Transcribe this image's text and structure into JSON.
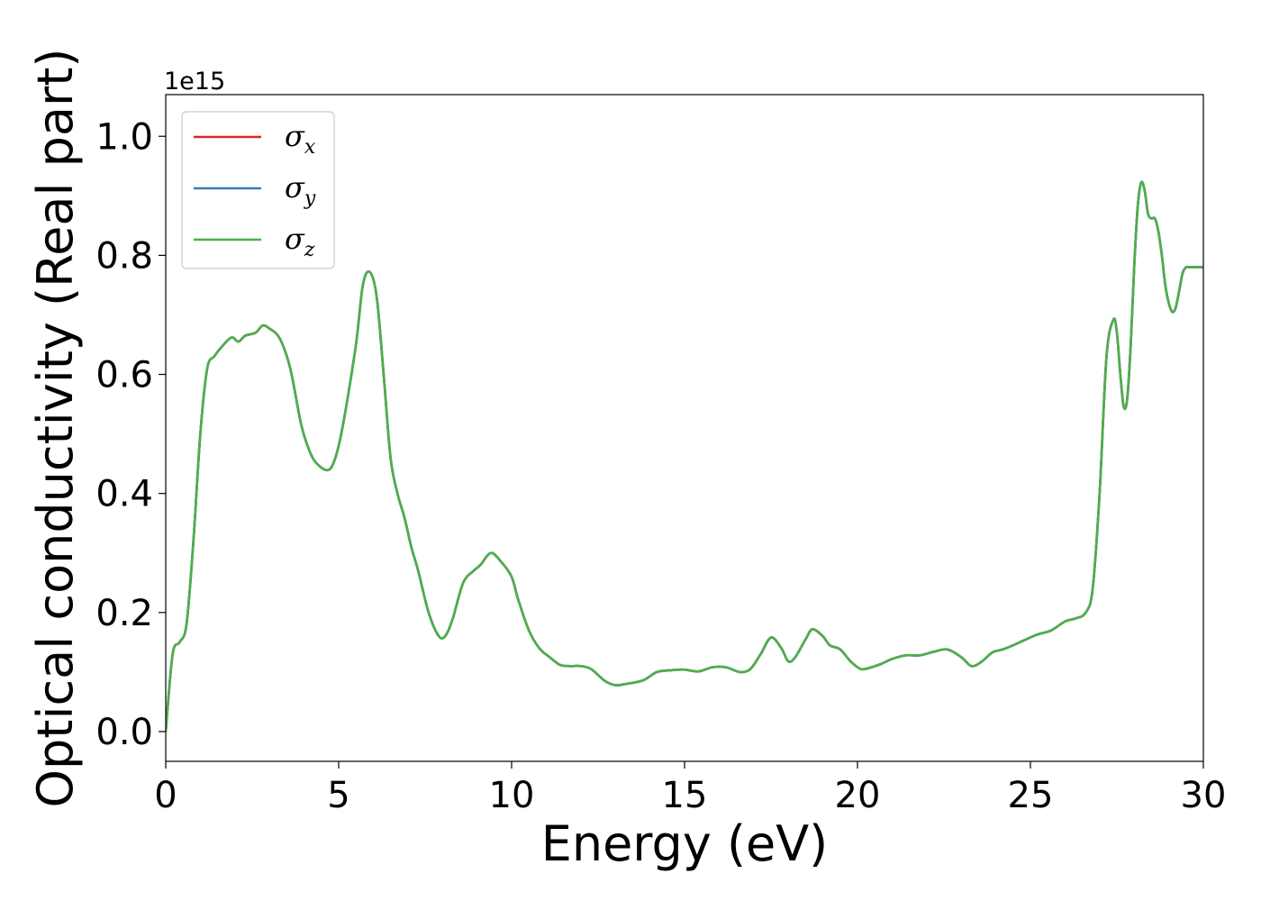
{
  "chart_data": {
    "type": "line",
    "xlabel": "Energy (eV)",
    "ylabel": "Optical conductivity (Real part)",
    "offset_text": "1e15",
    "xlim": [
      0,
      30
    ],
    "ylim": [
      -0.05,
      1.07
    ],
    "xticks": [
      0,
      5,
      10,
      15,
      20,
      25,
      30
    ],
    "xtick_labels": [
      "0",
      "5",
      "10",
      "15",
      "20",
      "25",
      "30"
    ],
    "yticks": [
      0.0,
      0.2,
      0.4,
      0.6,
      0.8,
      1.0
    ],
    "ytick_labels": [
      "0.0",
      "0.2",
      "0.4",
      "0.6",
      "0.8",
      "1.0"
    ],
    "grid": false,
    "legend_position": "upper-left",
    "legend": [
      {
        "symbol": "σ",
        "subscript": "x",
        "color": "#d62728"
      },
      {
        "symbol": "σ",
        "subscript": "y",
        "color": "#377eb8"
      },
      {
        "symbol": "σ",
        "subscript": "z",
        "color": "#4daf4a"
      }
    ],
    "x": [
      0,
      0.2,
      0.4,
      0.6,
      0.8,
      1.0,
      1.2,
      1.4,
      1.6,
      1.9,
      2.1,
      2.3,
      2.6,
      2.8,
      3.0,
      3.3,
      3.6,
      3.9,
      4.1,
      4.3,
      4.6,
      4.8,
      5.0,
      5.2,
      5.5,
      5.7,
      5.9,
      6.1,
      6.3,
      6.5,
      6.7,
      6.9,
      7.1,
      7.3,
      7.6,
      7.9,
      8.1,
      8.3,
      8.6,
      8.9,
      9.1,
      9.4,
      9.7,
      10.0,
      10.2,
      10.5,
      10.8,
      11.1,
      11.4,
      11.7,
      12.0,
      12.3,
      12.7,
      13.0,
      13.3,
      13.8,
      14.2,
      14.6,
      15.0,
      15.4,
      15.8,
      16.2,
      16.6,
      16.9,
      17.2,
      17.5,
      17.8,
      18.0,
      18.2,
      18.5,
      18.7,
      19.0,
      19.2,
      19.5,
      19.8,
      20.1,
      20.4,
      20.7,
      21.0,
      21.4,
      21.8,
      22.2,
      22.6,
      23.0,
      23.3,
      23.6,
      23.9,
      24.2,
      24.5,
      24.8,
      25.2,
      25.6,
      26.0,
      26.3,
      26.6,
      26.8,
      27.0,
      27.2,
      27.4,
      27.5,
      27.6,
      27.7,
      27.8,
      27.9,
      28.0,
      28.1,
      28.2,
      28.3,
      28.4,
      28.5,
      28.6,
      28.7,
      28.8,
      28.9,
      29.0,
      29.1,
      29.2,
      29.3,
      29.4,
      29.5,
      29.6,
      29.7,
      29.8,
      29.9,
      30.0
    ],
    "series": [
      {
        "color": "#d62728",
        "values": [
          0.0,
          0.13,
          0.15,
          0.18,
          0.32,
          0.5,
          0.61,
          0.63,
          0.645,
          0.662,
          0.655,
          0.665,
          0.67,
          0.682,
          0.677,
          0.66,
          0.61,
          0.52,
          0.48,
          0.455,
          0.44,
          0.445,
          0.48,
          0.54,
          0.65,
          0.75,
          0.772,
          0.73,
          0.6,
          0.46,
          0.4,
          0.36,
          0.31,
          0.27,
          0.2,
          0.16,
          0.162,
          0.19,
          0.25,
          0.27,
          0.28,
          0.3,
          0.285,
          0.26,
          0.22,
          0.17,
          0.14,
          0.125,
          0.112,
          0.11,
          0.11,
          0.105,
          0.085,
          0.078,
          0.08,
          0.086,
          0.1,
          0.103,
          0.104,
          0.101,
          0.108,
          0.108,
          0.1,
          0.105,
          0.13,
          0.158,
          0.14,
          0.118,
          0.125,
          0.155,
          0.172,
          0.16,
          0.145,
          0.138,
          0.118,
          0.105,
          0.108,
          0.114,
          0.122,
          0.128,
          0.128,
          0.134,
          0.138,
          0.125,
          0.11,
          0.118,
          0.133,
          0.138,
          0.145,
          0.153,
          0.163,
          0.17,
          0.185,
          0.19,
          0.2,
          0.24,
          0.4,
          0.63,
          0.692,
          0.67,
          0.6,
          0.545,
          0.56,
          0.65,
          0.78,
          0.88,
          0.922,
          0.91,
          0.87,
          0.862,
          0.862,
          0.84,
          0.8,
          0.75,
          0.72,
          0.705,
          0.712,
          0.74,
          0.77,
          0.78,
          0.78,
          0.78,
          0.78,
          0.78,
          0.78
        ]
      },
      {
        "color": "#377eb8",
        "values": [
          0.0,
          0.13,
          0.15,
          0.18,
          0.32,
          0.5,
          0.61,
          0.63,
          0.645,
          0.662,
          0.655,
          0.665,
          0.67,
          0.682,
          0.677,
          0.66,
          0.61,
          0.52,
          0.48,
          0.455,
          0.44,
          0.445,
          0.48,
          0.54,
          0.65,
          0.75,
          0.772,
          0.73,
          0.6,
          0.46,
          0.4,
          0.36,
          0.31,
          0.27,
          0.2,
          0.16,
          0.162,
          0.19,
          0.25,
          0.27,
          0.28,
          0.3,
          0.285,
          0.26,
          0.22,
          0.17,
          0.14,
          0.125,
          0.112,
          0.11,
          0.11,
          0.105,
          0.085,
          0.078,
          0.08,
          0.086,
          0.1,
          0.103,
          0.104,
          0.101,
          0.108,
          0.108,
          0.1,
          0.105,
          0.13,
          0.158,
          0.14,
          0.118,
          0.125,
          0.155,
          0.172,
          0.16,
          0.145,
          0.138,
          0.118,
          0.105,
          0.108,
          0.114,
          0.122,
          0.128,
          0.128,
          0.134,
          0.138,
          0.125,
          0.11,
          0.118,
          0.133,
          0.138,
          0.145,
          0.153,
          0.163,
          0.17,
          0.185,
          0.19,
          0.2,
          0.24,
          0.4,
          0.63,
          0.692,
          0.67,
          0.6,
          0.545,
          0.56,
          0.65,
          0.78,
          0.88,
          0.922,
          0.91,
          0.87,
          0.862,
          0.862,
          0.84,
          0.8,
          0.75,
          0.72,
          0.705,
          0.712,
          0.74,
          0.77,
          0.78,
          0.78,
          0.78,
          0.78,
          0.78,
          0.78
        ]
      },
      {
        "color": "#4daf4a",
        "values": [
          0.0,
          0.13,
          0.15,
          0.18,
          0.32,
          0.5,
          0.61,
          0.63,
          0.645,
          0.662,
          0.655,
          0.665,
          0.67,
          0.682,
          0.677,
          0.66,
          0.61,
          0.52,
          0.48,
          0.455,
          0.44,
          0.445,
          0.48,
          0.54,
          0.65,
          0.75,
          0.772,
          0.73,
          0.6,
          0.46,
          0.4,
          0.36,
          0.31,
          0.27,
          0.2,
          0.16,
          0.162,
          0.19,
          0.25,
          0.27,
          0.28,
          0.3,
          0.285,
          0.26,
          0.22,
          0.17,
          0.14,
          0.125,
          0.112,
          0.11,
          0.11,
          0.105,
          0.085,
          0.078,
          0.08,
          0.086,
          0.1,
          0.103,
          0.104,
          0.101,
          0.108,
          0.108,
          0.1,
          0.105,
          0.13,
          0.158,
          0.14,
          0.118,
          0.125,
          0.155,
          0.172,
          0.16,
          0.145,
          0.138,
          0.118,
          0.105,
          0.108,
          0.114,
          0.122,
          0.128,
          0.128,
          0.134,
          0.138,
          0.125,
          0.11,
          0.118,
          0.133,
          0.138,
          0.145,
          0.153,
          0.163,
          0.17,
          0.185,
          0.19,
          0.2,
          0.24,
          0.4,
          0.63,
          0.692,
          0.67,
          0.6,
          0.545,
          0.56,
          0.65,
          0.78,
          0.88,
          0.922,
          0.91,
          0.87,
          0.862,
          0.862,
          0.84,
          0.8,
          0.75,
          0.72,
          0.705,
          0.712,
          0.74,
          0.77,
          0.78,
          0.78,
          0.78,
          0.78,
          0.78,
          0.78
        ]
      }
    ]
  }
}
